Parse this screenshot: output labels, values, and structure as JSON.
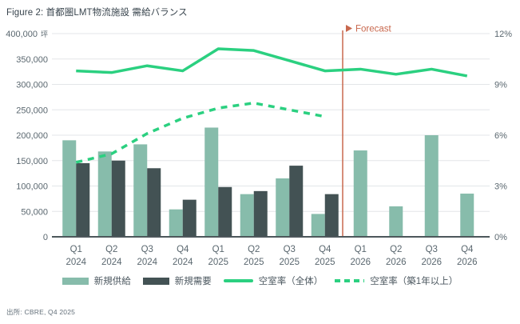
{
  "title": "Figure 2: 首都圏LMT物流施設 需給バランス",
  "source": "出所: CBRE, Q4 2025",
  "colors": {
    "supply_bar": "#87bcab",
    "demand_bar": "#435254",
    "vacancy_line": "#2bd080",
    "forecast": "#c8684e",
    "gridline": "#e3e6e8",
    "axis_line": "#4d575b",
    "tick_text": "#5a676f"
  },
  "chart_data": {
    "type": "bar",
    "subtype": "grouped bars with two overlay lines (combo chart)",
    "title": "Figure 2: 首都圏LMT物流施設 需給バランス",
    "categories": [
      "Q1 2024",
      "Q2 2024",
      "Q3 2024",
      "Q4 2024",
      "Q1 2025",
      "Q2 2025",
      "Q3 2025",
      "Q4 2025",
      "Q1 2026",
      "Q2 2026",
      "Q3 2026",
      "Q4 2026"
    ],
    "series": [
      {
        "name": "新規供給",
        "type": "bar",
        "axis": "left",
        "style": "solid",
        "values": [
          190000,
          168000,
          182000,
          54000,
          215000,
          84000,
          115000,
          45000,
          170000,
          60000,
          200000,
          85000
        ]
      },
      {
        "name": "新規需要",
        "type": "bar",
        "axis": "left",
        "style": "solid",
        "values": [
          145000,
          150000,
          135000,
          73000,
          98000,
          90000,
          140000,
          84000,
          null,
          null,
          null,
          null
        ]
      },
      {
        "name": "空室率（全体）",
        "type": "line",
        "axis": "right",
        "style": "solid",
        "values": [
          9.8,
          9.7,
          10.1,
          9.8,
          11.1,
          11.0,
          10.4,
          9.8,
          9.9,
          9.6,
          9.9,
          9.5
        ]
      },
      {
        "name": "空室率（築1年以上）",
        "type": "line",
        "axis": "right",
        "style": "dashed",
        "values": [
          4.4,
          4.9,
          6.1,
          7.0,
          7.6,
          7.9,
          7.5,
          7.1,
          null,
          null,
          null,
          null
        ]
      }
    ],
    "left_axis": {
      "unit": "坪",
      "min": 0,
      "max": 400000,
      "tick_step": 50000
    },
    "right_axis": {
      "min": 0,
      "max": 12,
      "ticks": [
        "0%",
        "3%",
        "6%",
        "9%",
        "12%"
      ],
      "tick_step_pct": 3,
      "gridline_step_pct": 1.5
    },
    "grid": "horizontal gridlines every 50,000 / 1.5%",
    "legend_position": "bottom center",
    "forecast": {
      "label": "Forecast",
      "starts_after_category": "Q4 2025"
    }
  }
}
